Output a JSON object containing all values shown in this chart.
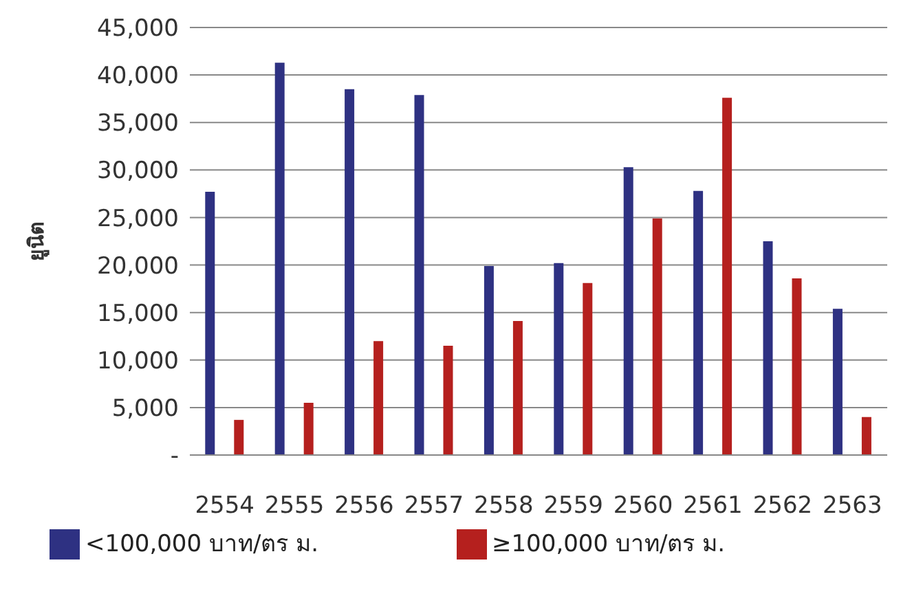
{
  "chart_data": {
    "type": "bar",
    "ylabel": "ยูนิต",
    "categories": [
      "2554",
      "2555",
      "2556",
      "2557",
      "2558",
      "2559",
      "2560",
      "2561",
      "2562",
      "2563"
    ],
    "series": [
      {
        "name": "<100,000 บาท/ตร ม.",
        "color": "#2e3182",
        "values": [
          27700,
          41300,
          38500,
          37900,
          19900,
          20200,
          30300,
          27800,
          22500,
          15400
        ]
      },
      {
        "name": "≥100,000 บาท/ตร ม.",
        "color": "#b5201e",
        "values": [
          3700,
          5500,
          12000,
          11500,
          14100,
          18100,
          24900,
          37600,
          18600,
          4000
        ]
      }
    ],
    "ylim": [
      0,
      45000
    ],
    "yticks": [
      {
        "value": 0,
        "label": "-"
      },
      {
        "value": 5000,
        "label": "5,000"
      },
      {
        "value": 10000,
        "label": "10,000"
      },
      {
        "value": 15000,
        "label": "15,000"
      },
      {
        "value": 20000,
        "label": "20,000"
      },
      {
        "value": 25000,
        "label": "25,000"
      },
      {
        "value": 30000,
        "label": "30,000"
      },
      {
        "value": 35000,
        "label": "35,000"
      },
      {
        "value": 40000,
        "label": "40,000"
      },
      {
        "value": 45000,
        "label": "45,000"
      }
    ],
    "grid": "y",
    "legend": "bottom"
  }
}
